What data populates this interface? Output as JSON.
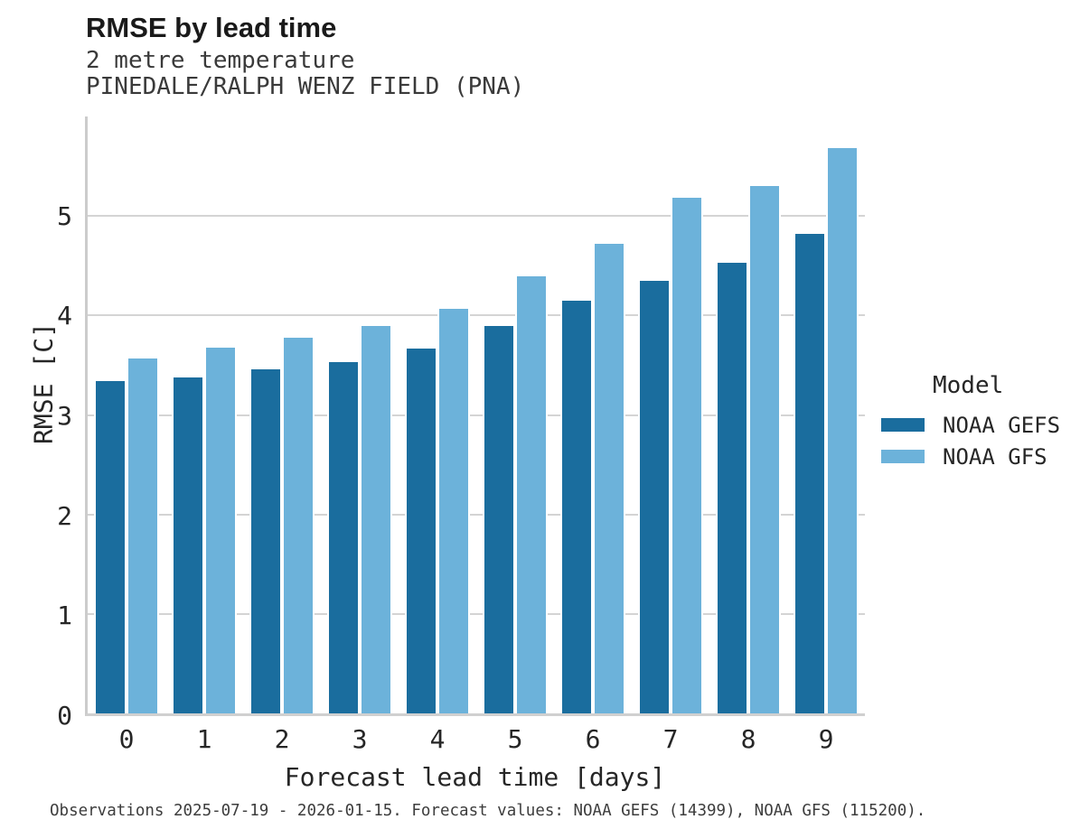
{
  "chart_data": {
    "type": "bar",
    "title": "RMSE by lead time",
    "subtitle1": "2 metre temperature",
    "subtitle2": "PINEDALE/RALPH WENZ FIELD (PNA)",
    "xlabel": "Forecast lead time [days]",
    "ylabel": "RMSE [C]",
    "legend_title": "Model",
    "categories": [
      "0",
      "1",
      "2",
      "3",
      "4",
      "5",
      "6",
      "7",
      "8",
      "9"
    ],
    "series": [
      {
        "name": "NOAA GEFS",
        "color": "#1a6d9e",
        "values": [
          3.34,
          3.38,
          3.46,
          3.53,
          3.67,
          3.89,
          4.15,
          4.35,
          4.53,
          4.82
        ]
      },
      {
        "name": "NOAA GFS",
        "color": "#6cb2da",
        "values": [
          3.57,
          3.68,
          3.78,
          3.89,
          4.07,
          4.39,
          4.72,
          5.18,
          5.3,
          5.68
        ]
      }
    ],
    "ylim": [
      0,
      6
    ],
    "yticks": [
      0,
      1,
      2,
      3,
      4,
      5
    ],
    "grid": "horizontal",
    "legend_position": "right",
    "caption": "Observations 2025-07-19 - 2026-01-15. Forecast values: NOAA GEFS (14399), NOAA GFS (115200).",
    "colors": {
      "gridline": "#d4d4d4",
      "spine": "#cccccc",
      "title_text": "#1a1a1a",
      "subtitle_text": "#3a3a3a",
      "tick_text": "#262626"
    }
  }
}
